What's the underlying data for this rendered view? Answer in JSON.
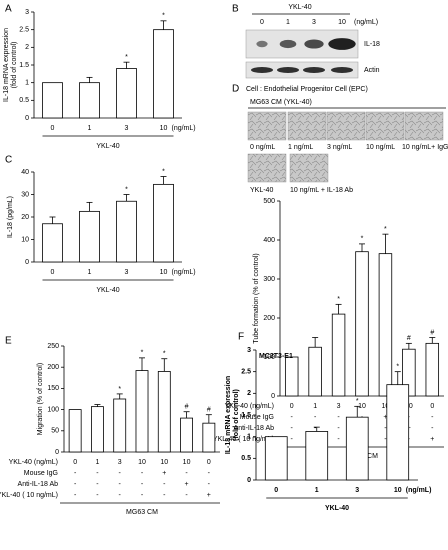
{
  "chart_data": [
    {
      "type": "bar",
      "panel_label": "A",
      "ylabel": [
        "IL-18 mRNA expression",
        "(fold of control)"
      ],
      "categories": [
        "0",
        "1",
        "3",
        "10"
      ],
      "categories_unit": "(ng/mL)",
      "x_label": "YKL-40",
      "values": [
        1,
        1.0,
        1.4,
        2.5
      ],
      "errors": [
        0,
        0.15,
        0.18,
        0.25
      ],
      "annotations": [
        null,
        null,
        "*",
        "*"
      ],
      "color": "#ffffff",
      "ylim": [
        0,
        3
      ],
      "yticks": [
        0,
        0.5,
        1,
        1.5,
        2,
        2.5,
        3
      ]
    },
    {
      "type": "bar",
      "panel_label": "C",
      "ylabel": [
        "IL-18 (pg/mL)"
      ],
      "categories": [
        "0",
        "1",
        "3",
        "10"
      ],
      "categories_unit": "(ng/mL)",
      "x_label": "YKL-40",
      "values": [
        17,
        22.5,
        27,
        34.5
      ],
      "errors": [
        3,
        4,
        3,
        3.5
      ],
      "annotations": [
        null,
        null,
        "*",
        "*"
      ],
      "color": "#ffffff",
      "ylim": [
        0,
        40
      ],
      "yticks": [
        0,
        10,
        20,
        30,
        40
      ]
    },
    {
      "type": "bar",
      "panel_label": null,
      "ylabel": [
        "Tube formation (% of control)"
      ],
      "categories": [
        "0",
        "1",
        "3",
        "10",
        "10",
        "10",
        "0"
      ],
      "categories_label": "YKL-40 (ng/mL)",
      "conditions": [
        {
          "name": "Mouse IgG",
          "values": [
            "-",
            "-",
            "-",
            "-",
            "+",
            "-",
            "-"
          ]
        },
        {
          "name": "Anti-IL-18 Ab",
          "values": [
            "-",
            "-",
            "-",
            "-",
            "-",
            "+",
            "-"
          ]
        },
        {
          "name": "YKL-40 ( 10 ng/mL)",
          "values": [
            "-",
            "-",
            "-",
            "-",
            "-",
            "-",
            "+"
          ]
        }
      ],
      "group_label": "MG63 CM",
      "values": [
        100,
        125,
        210,
        370,
        365,
        120,
        135
      ],
      "errors": [
        0,
        25,
        25,
        20,
        50,
        15,
        15
      ],
      "annotations": [
        null,
        null,
        "*",
        "*",
        "*",
        "#",
        "#"
      ],
      "color": "#ffffff",
      "ylim": [
        0,
        500
      ],
      "yticks": [
        0,
        100,
        200,
        300,
        400,
        500
      ]
    },
    {
      "type": "bar",
      "panel_label": "E",
      "ylabel": [
        "Migration (% of control)"
      ],
      "categories": [
        "0",
        "1",
        "3",
        "10",
        "10",
        "10",
        "0"
      ],
      "categories_label": "YKL-40 (ng/mL)",
      "conditions": [
        {
          "name": "Mouse IgG",
          "values": [
            "-",
            "-",
            "-",
            "-",
            "+",
            "-",
            "-"
          ]
        },
        {
          "name": "Anti-IL-18 Ab",
          "values": [
            "-",
            "-",
            "-",
            "-",
            "-",
            "+",
            "-"
          ]
        },
        {
          "name": "YKL-40 ( 10 ng/mL)",
          "values": [
            "-",
            "-",
            "-",
            "-",
            "-",
            "-",
            "+"
          ]
        }
      ],
      "group_label": "MG63 CM",
      "values": [
        100,
        107,
        125,
        192,
        190,
        80,
        68
      ],
      "errors": [
        0,
        5,
        12,
        30,
        30,
        15,
        20
      ],
      "annotations": [
        null,
        null,
        "*",
        "*",
        "*",
        "#",
        "#"
      ],
      "color": "#ffffff",
      "ylim": [
        0,
        250
      ],
      "yticks": [
        0,
        50,
        100,
        150,
        200,
        250
      ]
    },
    {
      "type": "bar",
      "panel_label": "F",
      "inner_label": "MC3T3-E1",
      "bold": true,
      "ylabel": [
        "IL-18 mRNA expression",
        "(fold of control)"
      ],
      "categories": [
        "0",
        "1",
        "3",
        "10"
      ],
      "categories_unit": "(ng/mL)",
      "x_label": "YKL-40",
      "values": [
        1,
        1.12,
        1.45,
        2.2
      ],
      "errors": [
        0,
        0.1,
        0.25,
        0.3
      ],
      "annotations": [
        null,
        null,
        "*",
        "*"
      ],
      "color": "#ffffff",
      "ylim": [
        0,
        3
      ],
      "yticks": [
        0,
        0.5,
        1,
        1.5,
        2,
        2.5,
        3
      ]
    }
  ],
  "blot": {
    "panel_label": "B",
    "title": "YKL-40",
    "lanes": [
      "0",
      "1",
      "3",
      "10"
    ],
    "unit": "(ng/mL)",
    "rows": [
      "IL-18",
      "Actin"
    ]
  },
  "micrographs": {
    "panel_label": "D",
    "cell": "Cell : Endothelial Progenitor Cell (EPC)",
    "condition": "MG63 CM (YKL-40)",
    "captions": [
      "0 ng/mL",
      "1 ng/mL",
      "3 ng/mL",
      "10 ng/mL",
      "10 ng/mL+ IgG",
      "YKL-40",
      "10 ng/mL + IL-18 Ab"
    ]
  }
}
